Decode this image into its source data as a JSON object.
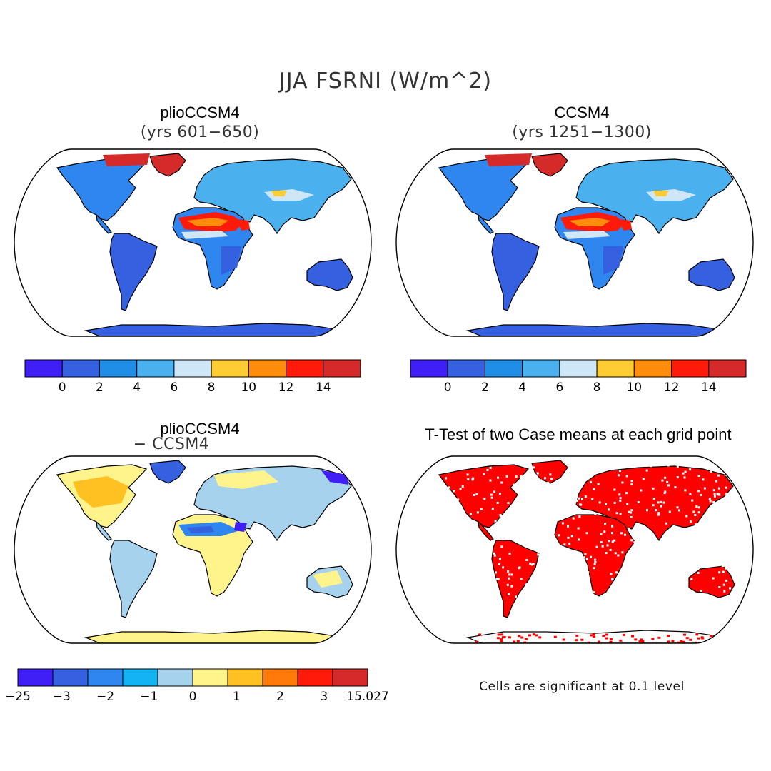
{
  "title": "JJA FSRNI (W/m^2)",
  "panels": [
    {
      "title": "plioCCSM4",
      "subtitle": "(yrs 601−650)",
      "style": "mean"
    },
    {
      "title": "CCSM4",
      "subtitle": "(yrs 1251−1300)",
      "style": "mean"
    },
    {
      "title": "plioCCSM4",
      "subtitle": "− CCSM4",
      "style": "diff"
    },
    {
      "title": "T-Test of two Case means at each grid point",
      "subtitle": "",
      "style": "ttest"
    }
  ],
  "colorbars": {
    "mean": {
      "colors": [
        "#3f1ff5",
        "#3560e0",
        "#1f8ee6",
        "#4ab0ee",
        "#cfe6f6",
        "#ffcc33",
        "#ff8c0a",
        "#ff1a0a",
        "#d42a2a"
      ],
      "labels": [
        "0",
        "2",
        "4",
        "6",
        "8",
        "10",
        "12",
        "14"
      ]
    },
    "diff": {
      "colors": [
        "#3f1ff5",
        "#3560e0",
        "#2f86ee",
        "#14b4f2",
        "#a6d2ee",
        "#fff48c",
        "#ffc022",
        "#ff7a0a",
        "#ff1a0a",
        "#d42a2a"
      ],
      "labels": [
        "−25",
        "−3",
        "−2",
        "−1",
        "0",
        "1",
        "2",
        "3",
        "15.027"
      ]
    }
  },
  "note": "Cells are significant at 0.1 level"
}
